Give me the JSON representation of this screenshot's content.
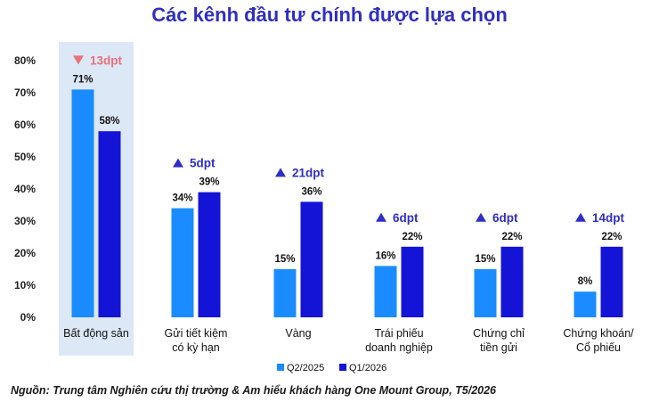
{
  "chart_data": {
    "type": "bar",
    "title": "Các kênh đầu tư chính được lựa chọn",
    "source": "Nguồn: Trung tâm Nghiên cứu thị trường & Am hiểu khách hàng One Mount Group, T5/2026",
    "ylim": [
      0,
      80
    ],
    "yticks": [
      "0%",
      "10%",
      "20%",
      "30%",
      "40%",
      "50%",
      "60%",
      "70%",
      "80%"
    ],
    "categories": [
      [
        "Bất động sản"
      ],
      [
        "Gửi tiết kiệm",
        "có kỳ hạn"
      ],
      [
        "Vàng"
      ],
      [
        "Trái phiếu",
        "doanh nghiệp"
      ],
      [
        "Chứng chỉ",
        "tiền gửi"
      ],
      [
        "Chứng khoán/",
        "Cổ phiếu"
      ]
    ],
    "series": [
      {
        "name": "Q2/2025",
        "values": [
          71,
          34,
          15,
          16,
          15,
          8
        ],
        "color": "#1a8cff"
      },
      {
        "name": "Q1/2026",
        "values": [
          58,
          39,
          36,
          22,
          22,
          22
        ],
        "color": "#1414d6"
      }
    ],
    "value_labels": [
      [
        "71%",
        "34%",
        "15%",
        "16%",
        "15%",
        "8%"
      ],
      [
        "58%",
        "39%",
        "36%",
        "22%",
        "22%",
        "22%"
      ]
    ],
    "changes": [
      {
        "label": "13dpt",
        "direction": "down",
        "color": "#e8707a"
      },
      {
        "label": "5dpt",
        "direction": "up",
        "color": "#2e2ec4"
      },
      {
        "label": "21dpt",
        "direction": "up",
        "color": "#2e2ec4"
      },
      {
        "label": "6dpt",
        "direction": "up",
        "color": "#2e2ec4"
      },
      {
        "label": "6dpt",
        "direction": "up",
        "color": "#2e2ec4"
      },
      {
        "label": "14dpt",
        "direction": "up",
        "color": "#2e2ec4"
      }
    ],
    "highlight_category": 0,
    "highlight_color": "#dde8f7",
    "legend_placement": "bottom-center",
    "grid": false
  }
}
